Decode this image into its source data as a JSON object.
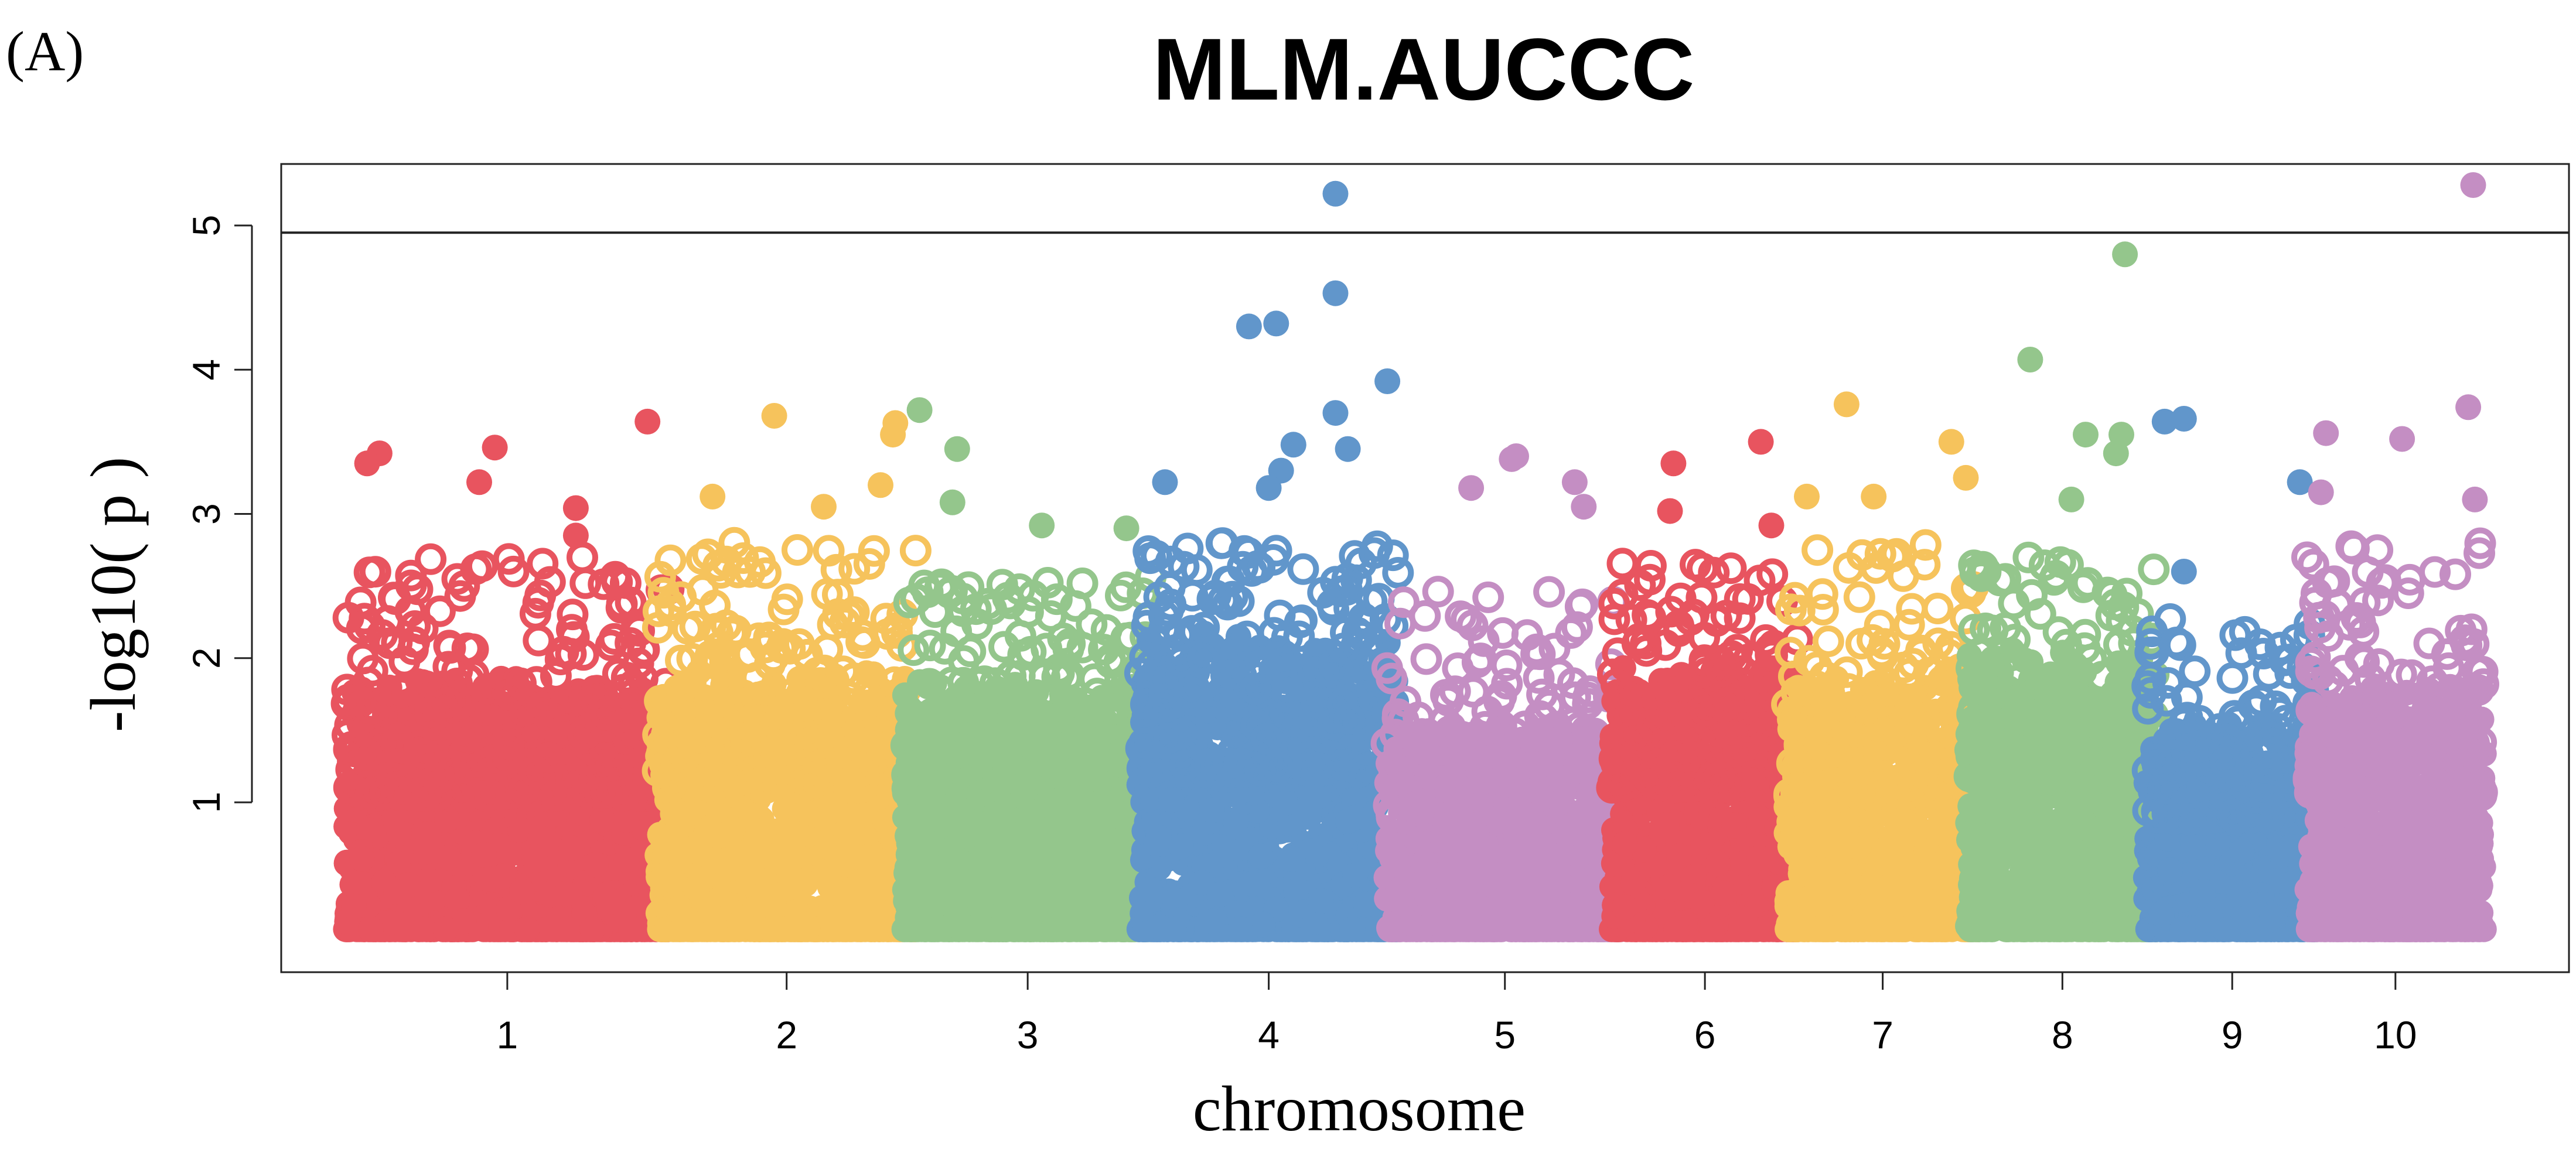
{
  "panel_label": "(A)",
  "chart_data": {
    "type": "scatter",
    "subtype": "manhattan",
    "title": "MLM.AUCCC",
    "xlabel": "chromosome",
    "ylabel": "-log10( p )",
    "ylim": [
      0,
      5.5
    ],
    "yticks": [
      1,
      2,
      3,
      4,
      5
    ],
    "significance_threshold": 4.95,
    "grid": false,
    "palette": [
      "#e8545f",
      "#f6c35c",
      "#94c68c",
      "#6196cb",
      "#c48ec3"
    ],
    "chromosomes": [
      {
        "label": "1",
        "color": "#e8545f",
        "span": [
          0.0,
          0.1465
        ]
      },
      {
        "label": "2",
        "color": "#f6c35c",
        "span": [
          0.1465,
          0.2627
        ]
      },
      {
        "label": "3",
        "color": "#94c68c",
        "span": [
          0.2627,
          0.3732
        ]
      },
      {
        "label": "4",
        "color": "#6196cb",
        "span": [
          0.3732,
          0.4894
        ]
      },
      {
        "label": "5",
        "color": "#c48ec3",
        "span": [
          0.4894,
          0.5953
        ]
      },
      {
        "label": "6",
        "color": "#e8545f",
        "span": [
          0.5953,
          0.6775
        ]
      },
      {
        "label": "7",
        "color": "#f6c35c",
        "span": [
          0.6775,
          0.7625
        ]
      },
      {
        "label": "8",
        "color": "#94c68c",
        "span": [
          0.7625,
          0.8465
        ]
      },
      {
        "label": "9",
        "color": "#6196cb",
        "span": [
          0.8465,
          0.9222
        ]
      },
      {
        "label": "10",
        "color": "#c48ec3",
        "span": [
          0.9222,
          1.0
        ]
      }
    ],
    "base_max": [
      1.9,
      2.0,
      1.9,
      2.2,
      1.6,
      2.0,
      1.9,
      2.1,
      1.6,
      1.9
    ],
    "noise_max": [
      2.7,
      2.8,
      2.6,
      2.8,
      2.5,
      2.7,
      2.8,
      2.7,
      2.3,
      2.8
    ],
    "top_points": [
      {
        "chr": 1,
        "x": 0.09,
        "p": 3.42
      },
      {
        "chr": 1,
        "x": 0.05,
        "p": 3.35
      },
      {
        "chr": 1,
        "x": 0.46,
        "p": 3.46
      },
      {
        "chr": 1,
        "x": 0.95,
        "p": 3.64
      },
      {
        "chr": 1,
        "x": 0.41,
        "p": 3.22
      },
      {
        "chr": 1,
        "x": 0.72,
        "p": 3.04
      },
      {
        "chr": 1,
        "x": 0.72,
        "p": 2.85
      },
      {
        "chr": 2,
        "x": 0.45,
        "p": 3.68
      },
      {
        "chr": 2,
        "x": 0.94,
        "p": 3.63
      },
      {
        "chr": 2,
        "x": 0.93,
        "p": 3.55
      },
      {
        "chr": 2,
        "x": 0.88,
        "p": 3.2
      },
      {
        "chr": 2,
        "x": 0.65,
        "p": 3.05
      },
      {
        "chr": 2,
        "x": 0.2,
        "p": 3.12
      },
      {
        "chr": 3,
        "x": 0.04,
        "p": 3.72
      },
      {
        "chr": 3,
        "x": 0.2,
        "p": 3.45
      },
      {
        "chr": 3,
        "x": 0.18,
        "p": 3.08
      },
      {
        "chr": 3,
        "x": 0.56,
        "p": 2.92
      },
      {
        "chr": 3,
        "x": 0.92,
        "p": 2.9
      },
      {
        "chr": 4,
        "x": 0.08,
        "p": 3.22
      },
      {
        "chr": 4,
        "x": 0.42,
        "p": 4.3
      },
      {
        "chr": 4,
        "x": 0.53,
        "p": 4.32
      },
      {
        "chr": 4,
        "x": 0.77,
        "p": 5.22
      },
      {
        "chr": 4,
        "x": 0.77,
        "p": 4.53
      },
      {
        "chr": 4,
        "x": 0.77,
        "p": 3.7
      },
      {
        "chr": 4,
        "x": 0.98,
        "p": 3.92
      },
      {
        "chr": 4,
        "x": 0.82,
        "p": 3.45
      },
      {
        "chr": 4,
        "x": 0.6,
        "p": 3.48
      },
      {
        "chr": 4,
        "x": 0.55,
        "p": 3.3
      },
      {
        "chr": 4,
        "x": 0.5,
        "p": 3.18
      },
      {
        "chr": 5,
        "x": 0.55,
        "p": 3.4
      },
      {
        "chr": 5,
        "x": 0.53,
        "p": 3.38
      },
      {
        "chr": 5,
        "x": 0.81,
        "p": 3.22
      },
      {
        "chr": 5,
        "x": 0.35,
        "p": 3.18
      },
      {
        "chr": 5,
        "x": 0.85,
        "p": 3.05
      },
      {
        "chr": 6,
        "x": 0.32,
        "p": 3.35
      },
      {
        "chr": 6,
        "x": 0.82,
        "p": 3.5
      },
      {
        "chr": 6,
        "x": 0.3,
        "p": 3.02
      },
      {
        "chr": 6,
        "x": 0.88,
        "p": 2.92
      },
      {
        "chr": 7,
        "x": 0.3,
        "p": 3.76
      },
      {
        "chr": 7,
        "x": 0.88,
        "p": 3.5
      },
      {
        "chr": 7,
        "x": 0.96,
        "p": 3.25
      },
      {
        "chr": 7,
        "x": 0.08,
        "p": 3.12
      },
      {
        "chr": 7,
        "x": 0.45,
        "p": 3.12
      },
      {
        "chr": 8,
        "x": 0.85,
        "p": 4.8
      },
      {
        "chr": 8,
        "x": 0.32,
        "p": 4.07
      },
      {
        "chr": 8,
        "x": 0.63,
        "p": 3.55
      },
      {
        "chr": 8,
        "x": 0.83,
        "p": 3.55
      },
      {
        "chr": 8,
        "x": 0.8,
        "p": 3.42
      },
      {
        "chr": 8,
        "x": 0.55,
        "p": 3.1
      },
      {
        "chr": 9,
        "x": 0.08,
        "p": 3.64
      },
      {
        "chr": 9,
        "x": 0.2,
        "p": 3.66
      },
      {
        "chr": 9,
        "x": 0.92,
        "p": 3.22
      },
      {
        "chr": 9,
        "x": 0.2,
        "p": 2.6
      },
      {
        "chr": 10,
        "x": 0.08,
        "p": 3.56
      },
      {
        "chr": 10,
        "x": 0.54,
        "p": 3.52
      },
      {
        "chr": 10,
        "x": 0.94,
        "p": 3.74
      },
      {
        "chr": 10,
        "x": 0.97,
        "p": 5.28
      },
      {
        "chr": 10,
        "x": 0.98,
        "p": 3.1
      },
      {
        "chr": 10,
        "x": 0.05,
        "p": 3.15
      }
    ]
  }
}
